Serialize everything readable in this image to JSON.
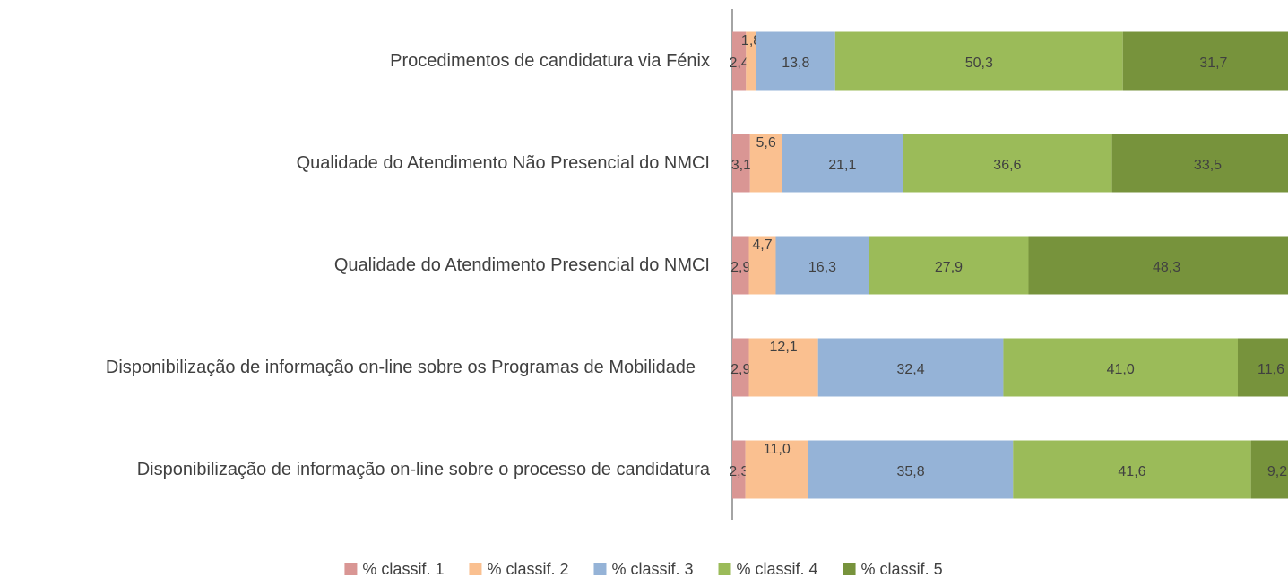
{
  "chart_data": {
    "type": "stacked-bar-horizontal",
    "categories": [
      "Procedimentos de candidatura via Fénix",
      "Qualidade do Atendimento Não Presencial do NMCI",
      "Qualidade do Atendimento Presencial do NMCI",
      "Disponibilização de informação on-line sobre os Programas de Mobilidade",
      "Disponibilização de informação on-line sobre o processo de candidatura"
    ],
    "series": [
      {
        "name": "% classif. 1",
        "color": "#d99694",
        "values": [
          2.4,
          3.1,
          2.9,
          2.9,
          2.3
        ],
        "value_labels": [
          "2,4",
          "3,1",
          "2,9",
          "2,9",
          "2,3"
        ]
      },
      {
        "name": "% classif. 2",
        "color": "#fac090",
        "values": [
          1.8,
          5.6,
          4.7,
          12.1,
          11.0
        ],
        "value_labels": [
          "1,8",
          "5,6",
          "4,7",
          "12,1",
          "11,0"
        ]
      },
      {
        "name": "% classif. 3",
        "color": "#95b3d7",
        "values": [
          13.8,
          21.1,
          16.3,
          32.4,
          35.8
        ],
        "value_labels": [
          "13,8",
          "21,1",
          "16,3",
          "32,4",
          "35,8"
        ]
      },
      {
        "name": "% classif. 4",
        "color": "#9bbb59",
        "values": [
          50.3,
          36.6,
          27.9,
          41.0,
          41.6
        ],
        "value_labels": [
          "50,3",
          "36,6",
          "27,9",
          "41,0",
          "41,6"
        ]
      },
      {
        "name": "% classif. 5",
        "color": "#77933c",
        "values": [
          31.7,
          33.5,
          48.3,
          11.6,
          9.2
        ],
        "value_labels": [
          "31,7",
          "33,5",
          "48,3",
          "11,6",
          "9,2"
        ]
      }
    ],
    "xlim": [
      0,
      100
    ],
    "legend": "bottom"
  }
}
